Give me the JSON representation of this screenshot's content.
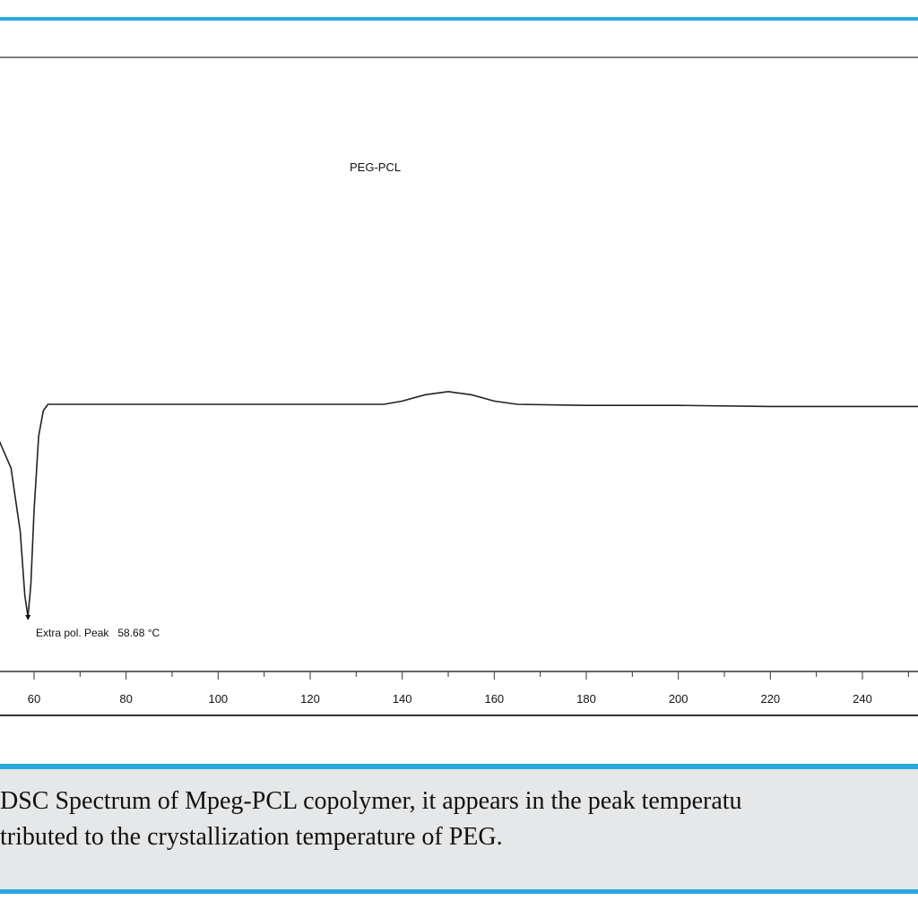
{
  "figure": {
    "caption_lines": [
      "DSC Spectrum of Mpeg-PCL copolymer, it appears in the peak temperatu",
      "tributed to the crystallization temperature of PEG."
    ]
  },
  "colors": {
    "accent_rule": "#29a9e0",
    "caption_background": "#e6e7e8",
    "curve": "#222222"
  },
  "chart_data": {
    "type": "line",
    "title": "",
    "xlabel": "",
    "ylabel": "",
    "xlim": [
      40,
      257
    ],
    "x_ticks": [
      60,
      80,
      100,
      120,
      140,
      160,
      180,
      200,
      220,
      240
    ],
    "grid": false,
    "legend": "none",
    "series": [
      {
        "name": "PEG-PCL",
        "points": [
          [
            40,
            0.2
          ],
          [
            44,
            0.0
          ],
          [
            48,
            -0.5
          ],
          [
            52,
            -1.5
          ],
          [
            55,
            -3.0
          ],
          [
            57,
            -6.0
          ],
          [
            58,
            -9.0
          ],
          [
            58.68,
            -10.0
          ],
          [
            59.3,
            -8.5
          ],
          [
            60,
            -5.0
          ],
          [
            61,
            -1.5
          ],
          [
            62,
            -0.3
          ],
          [
            63,
            0.0
          ],
          [
            80,
            0.0
          ],
          [
            100,
            0.0
          ],
          [
            120,
            0.0
          ],
          [
            136,
            0.0
          ],
          [
            140,
            0.15
          ],
          [
            145,
            0.45
          ],
          [
            150,
            0.6
          ],
          [
            155,
            0.45
          ],
          [
            160,
            0.15
          ],
          [
            165,
            0.0
          ],
          [
            180,
            -0.05
          ],
          [
            200,
            -0.05
          ],
          [
            220,
            -0.1
          ],
          [
            240,
            -0.1
          ],
          [
            257,
            -0.1
          ]
        ]
      }
    ],
    "annotations": [
      {
        "text": "Extra pol. Peak   58.68 °C",
        "x": 58.68,
        "y": -10.0
      }
    ]
  }
}
